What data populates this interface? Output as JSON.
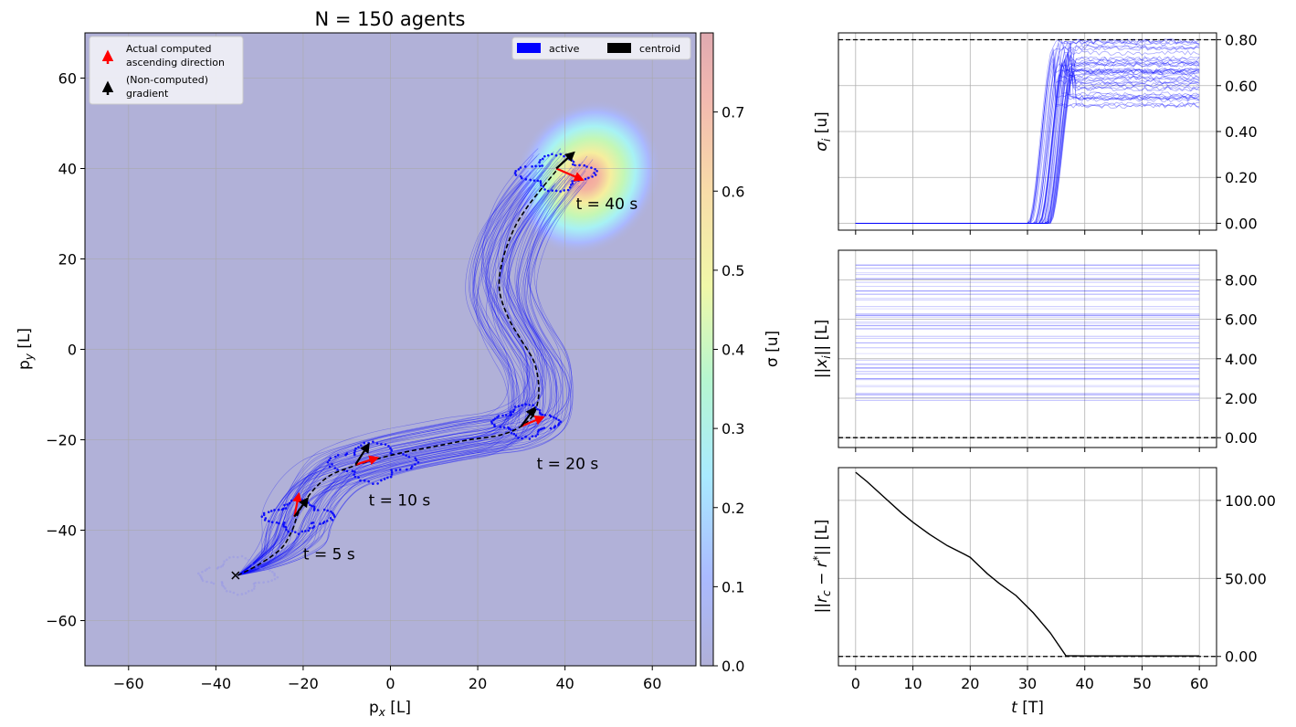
{
  "chart_data": [
    {
      "type": "scatter",
      "title": "N = 150 agents",
      "xlabel": "p_x [L]",
      "ylabel": "p_y [L]",
      "xlim": [
        -70,
        70
      ],
      "ylim": [
        -70,
        70
      ],
      "xticks": [
        -60,
        -40,
        -20,
        0,
        20,
        40,
        60
      ],
      "yticks": [
        -60,
        -40,
        -20,
        0,
        20,
        40,
        60
      ],
      "grid": true,
      "background_color": "#b1b1d8",
      "source_peak": [
        45,
        38
      ],
      "colorbar": {
        "label": "σ [u]",
        "range": [
          0.0,
          0.8
        ],
        "ticks": [
          "0.0",
          "0.1",
          "0.2",
          "0.3",
          "0.4",
          "0.5",
          "0.6",
          "0.7"
        ]
      },
      "legend_arrows": [
        {
          "label_line1": "Actual computed",
          "label_line2": "ascending direction",
          "color": "#ff0000"
        },
        {
          "label_line1": "(Non-computed)",
          "label_line2": "gradient",
          "color": "#000000"
        }
      ],
      "legend_patches": [
        {
          "label": "active",
          "color": "#0000ff"
        },
        {
          "label": "centroid",
          "color": "#000000"
        }
      ],
      "centroid_path": [
        [
          -35,
          -50
        ],
        [
          -30,
          -47.5
        ],
        [
          -25,
          -44
        ],
        [
          -22.5,
          -40
        ],
        [
          -21,
          -36
        ],
        [
          -18,
          -31.5
        ],
        [
          -14,
          -28
        ],
        [
          -9,
          -26
        ],
        [
          -4,
          -24.5
        ],
        [
          2,
          -23
        ],
        [
          10,
          -21.5
        ],
        [
          18,
          -20
        ],
        [
          25,
          -19
        ],
        [
          30,
          -17
        ],
        [
          33,
          -14
        ],
        [
          34,
          -9
        ],
        [
          33,
          -3
        ],
        [
          30,
          2
        ],
        [
          27,
          7
        ],
        [
          25,
          13
        ],
        [
          25.5,
          19
        ],
        [
          28,
          26
        ],
        [
          31,
          31
        ],
        [
          35,
          36
        ],
        [
          38,
          39.5
        ]
      ],
      "start_marker": [
        -35.5,
        -50
      ],
      "formations": [
        {
          "center": [
            -35,
            -50
          ],
          "r": 9,
          "faded": true
        },
        {
          "center": [
            -21,
            -37
          ],
          "r": 8,
          "faded": false
        },
        {
          "center": [
            -4,
            -25
          ],
          "r": 10,
          "faded": false
        },
        {
          "center": [
            31,
            -16
          ],
          "r": 8,
          "faded": false
        },
        {
          "center": [
            38,
            39
          ],
          "r": 9,
          "faded": false
        }
      ],
      "annotations": [
        {
          "text": "t = 5 s",
          "x": -20,
          "y": -46.5
        },
        {
          "text": "t = 10 s",
          "x": -5,
          "y": -34.5
        },
        {
          "text": "t = 20 s",
          "x": 33.5,
          "y": -26.5
        },
        {
          "text": "t = 40 s",
          "x": 42.5,
          "y": 31
        }
      ],
      "arrows_red": [
        {
          "from": [
            -22,
            -37
          ],
          "to": [
            -21,
            -32
          ]
        },
        {
          "from": [
            -8,
            -25.5
          ],
          "to": [
            -3,
            -24
          ]
        },
        {
          "from": [
            30,
            -17
          ],
          "to": [
            35,
            -15
          ]
        },
        {
          "from": [
            38,
            40
          ],
          "to": [
            44,
            37.5
          ]
        }
      ],
      "arrows_black": [
        {
          "from": [
            -22,
            -37
          ],
          "to": [
            -19,
            -33
          ]
        },
        {
          "from": [
            -8,
            -25.5
          ],
          "to": [
            -5,
            -21
          ]
        },
        {
          "from": [
            30,
            -17
          ],
          "to": [
            33,
            -13
          ]
        },
        {
          "from": [
            38,
            40
          ],
          "to": [
            42,
            43.5
          ]
        }
      ]
    },
    {
      "type": "line",
      "ylabel": "σ_i [u]",
      "xlim": [
        -3,
        63
      ],
      "ylim": [
        -0.03,
        0.83
      ],
      "yticks": [
        0.0,
        0.2,
        0.4,
        0.6,
        0.8
      ],
      "ytick_labels": [
        "0.00",
        "0.20",
        "0.40",
        "0.60",
        "0.80"
      ],
      "threshold": 0.8,
      "series_color": "#0000ff",
      "rise_time_range": [
        33,
        37
      ],
      "final_value_range": [
        0.5,
        0.8
      ]
    },
    {
      "type": "line",
      "ylabel": "||x_i|| [L]",
      "xlim": [
        -3,
        63
      ],
      "ylim": [
        -0.5,
        9.5
      ],
      "yticks": [
        0,
        2,
        4,
        6,
        8
      ],
      "ytick_labels": [
        "0.00",
        "2.00",
        "4.00",
        "6.00",
        "8.00"
      ],
      "threshold": 0.0,
      "series_color": "#0000ff",
      "value_range": [
        1.8,
        8.8
      ]
    },
    {
      "type": "line",
      "xlabel": "t [T]",
      "ylabel": "||r_c − r*|| [L]",
      "xlim": [
        -3,
        63
      ],
      "ylim": [
        -6,
        121
      ],
      "xticks": [
        0,
        10,
        20,
        30,
        40,
        50,
        60
      ],
      "yticks": [
        0,
        50,
        100
      ],
      "ytick_labels": [
        "0.00",
        "50.00",
        "100.00"
      ],
      "threshold": 0.0,
      "series_color": "#000000",
      "t": [
        0,
        2,
        5,
        8,
        10,
        13,
        16,
        19,
        20,
        21,
        23,
        25,
        28,
        31,
        34,
        36.7,
        40,
        50,
        60
      ],
      "values": [
        118,
        112,
        102,
        92,
        86,
        78,
        71,
        65.5,
        63.5,
        60,
        53,
        47,
        39,
        28,
        15,
        0.5,
        0.3,
        0.3,
        0.3
      ]
    }
  ]
}
